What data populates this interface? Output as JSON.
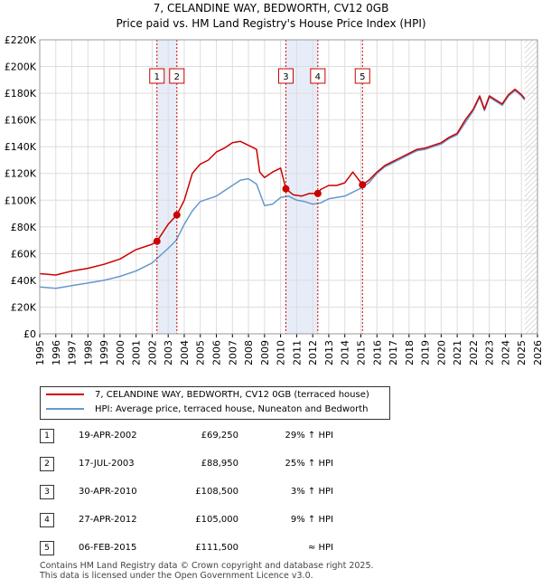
{
  "title": {
    "line1": "7, CELANDINE WAY, BEDWORTH, CV12 0GB",
    "line2": "Price paid vs. HM Land Registry's House Price Index (HPI)"
  },
  "legend": {
    "property": "7, CELANDINE WAY, BEDWORTH, CV12 0GB (terraced house)",
    "hpi": "HPI: Average price, terraced house, Nuneaton and Bedworth"
  },
  "sales": [
    {
      "num": "1",
      "date": "19-APR-2002",
      "price": "£69,250",
      "hpi": "29% ↑ HPI"
    },
    {
      "num": "2",
      "date": "17-JUL-2003",
      "price": "£88,950",
      "hpi": "25% ↑ HPI"
    },
    {
      "num": "3",
      "date": "30-APR-2010",
      "price": "£108,500",
      "hpi": "3% ↑ HPI"
    },
    {
      "num": "4",
      "date": "27-APR-2012",
      "price": "£105,000",
      "hpi": "9% ↑ HPI"
    },
    {
      "num": "5",
      "date": "06-FEB-2015",
      "price": "£111,500",
      "hpi": "≈ HPI"
    }
  ],
  "footer": {
    "line1": "Contains HM Land Registry data © Crown copyright and database right 2025.",
    "line2": "This data is licensed under the Open Government Licence v3.0."
  },
  "colors": {
    "property": "#cc0000",
    "hpi": "#6699cc",
    "shade": "#dde6f5",
    "grid": "#dddddd"
  },
  "chart_data": {
    "type": "line",
    "title": "7, CELANDINE WAY, BEDWORTH, CV12 0GB — Price paid vs. HM Land Registry's House Price Index (HPI)",
    "xlabel": "",
    "ylabel": "",
    "xlim": [
      1995,
      2026
    ],
    "ylim": [
      0,
      220000
    ],
    "y_ticks": [
      0,
      20000,
      40000,
      60000,
      80000,
      100000,
      120000,
      140000,
      160000,
      180000,
      200000,
      220000
    ],
    "y_tick_labels": [
      "£0",
      "£20K",
      "£40K",
      "£60K",
      "£80K",
      "£100K",
      "£120K",
      "£140K",
      "£160K",
      "£180K",
      "£200K",
      "£220K"
    ],
    "x_ticks": [
      1995,
      1996,
      1997,
      1998,
      1999,
      2000,
      2001,
      2002,
      2003,
      2004,
      2005,
      2006,
      2007,
      2008,
      2009,
      2010,
      2011,
      2012,
      2013,
      2014,
      2015,
      2016,
      2017,
      2018,
      2019,
      2020,
      2021,
      2022,
      2023,
      2024,
      2025,
      2026
    ],
    "x_tick_labels": [
      "1995",
      "1996",
      "1997",
      "1998",
      "1999",
      "2000",
      "2001",
      "2002",
      "2003",
      "2004",
      "2005",
      "2006",
      "2007",
      "2008",
      "2009",
      "2010",
      "2011",
      "2012",
      "2013",
      "2014",
      "2015",
      "2016",
      "2017",
      "2018",
      "2019",
      "2020",
      "2021",
      "2022",
      "2023",
      "2024",
      "2025",
      "2026"
    ],
    "series": [
      {
        "name": "7, CELANDINE WAY, BEDWORTH, CV12 0GB (terraced house)",
        "points": [
          [
            1995.0,
            45000
          ],
          [
            1996.0,
            44000
          ],
          [
            1997.0,
            47000
          ],
          [
            1998.0,
            49000
          ],
          [
            1999.0,
            52000
          ],
          [
            2000.0,
            56000
          ],
          [
            2001.0,
            63000
          ],
          [
            2002.0,
            67000
          ],
          [
            2002.3,
            69250
          ],
          [
            2003.0,
            82000
          ],
          [
            2003.54,
            88950
          ],
          [
            2004.0,
            100000
          ],
          [
            2004.5,
            120000
          ],
          [
            2005.0,
            127000
          ],
          [
            2005.5,
            130000
          ],
          [
            2006.0,
            136000
          ],
          [
            2006.5,
            139000
          ],
          [
            2007.0,
            143000
          ],
          [
            2007.5,
            144000
          ],
          [
            2008.0,
            141000
          ],
          [
            2008.5,
            138000
          ],
          [
            2008.7,
            121000
          ],
          [
            2009.0,
            117000
          ],
          [
            2009.5,
            121000
          ],
          [
            2010.0,
            124000
          ],
          [
            2010.33,
            108500
          ],
          [
            2010.8,
            104000
          ],
          [
            2011.3,
            103000
          ],
          [
            2011.8,
            105000
          ],
          [
            2012.32,
            105000
          ],
          [
            2012.5,
            108000
          ],
          [
            2013.0,
            111000
          ],
          [
            2013.5,
            111000
          ],
          [
            2014.0,
            113000
          ],
          [
            2014.5,
            121000
          ],
          [
            2015.1,
            111500
          ],
          [
            2015.5,
            115000
          ],
          [
            2016.0,
            121000
          ],
          [
            2016.5,
            126000
          ],
          [
            2017.0,
            129000
          ],
          [
            2017.5,
            132000
          ],
          [
            2018.0,
            135000
          ],
          [
            2018.5,
            138000
          ],
          [
            2019.0,
            139000
          ],
          [
            2019.5,
            141000
          ],
          [
            2020.0,
            143000
          ],
          [
            2020.5,
            147000
          ],
          [
            2021.0,
            150000
          ],
          [
            2021.5,
            160000
          ],
          [
            2022.0,
            168000
          ],
          [
            2022.4,
            178000
          ],
          [
            2022.7,
            168000
          ],
          [
            2023.0,
            178000
          ],
          [
            2023.4,
            175000
          ],
          [
            2023.8,
            172000
          ],
          [
            2024.2,
            179000
          ],
          [
            2024.6,
            183000
          ],
          [
            2025.0,
            179000
          ],
          [
            2025.2,
            176000
          ]
        ]
      },
      {
        "name": "HPI: Average price, terraced house, Nuneaton and Bedworth",
        "points": [
          [
            1995.0,
            35000
          ],
          [
            1996.0,
            34000
          ],
          [
            1997.0,
            36000
          ],
          [
            1998.0,
            38000
          ],
          [
            1999.0,
            40000
          ],
          [
            2000.0,
            43000
          ],
          [
            2001.0,
            47000
          ],
          [
            2002.0,
            53000
          ],
          [
            2003.0,
            64000
          ],
          [
            2003.5,
            70000
          ],
          [
            2004.0,
            82000
          ],
          [
            2004.5,
            92000
          ],
          [
            2005.0,
            99000
          ],
          [
            2006.0,
            103000
          ],
          [
            2006.5,
            107000
          ],
          [
            2007.0,
            111000
          ],
          [
            2007.5,
            115000
          ],
          [
            2008.0,
            116000
          ],
          [
            2008.5,
            112000
          ],
          [
            2009.0,
            96000
          ],
          [
            2009.5,
            97000
          ],
          [
            2010.0,
            102000
          ],
          [
            2010.5,
            103000
          ],
          [
            2011.0,
            100000
          ],
          [
            2011.5,
            99000
          ],
          [
            2012.0,
            97000
          ],
          [
            2012.5,
            98000
          ],
          [
            2013.0,
            101000
          ],
          [
            2013.5,
            102000
          ],
          [
            2014.0,
            103000
          ],
          [
            2014.5,
            106000
          ],
          [
            2015.0,
            109000
          ],
          [
            2015.5,
            113000
          ],
          [
            2016.0,
            120000
          ],
          [
            2016.5,
            125000
          ],
          [
            2017.0,
            128000
          ],
          [
            2017.5,
            131000
          ],
          [
            2018.0,
            134000
          ],
          [
            2018.5,
            137000
          ],
          [
            2019.0,
            138000
          ],
          [
            2019.5,
            140000
          ],
          [
            2020.0,
            142000
          ],
          [
            2020.5,
            146000
          ],
          [
            2021.0,
            149000
          ],
          [
            2021.5,
            158000
          ],
          [
            2022.0,
            167000
          ],
          [
            2022.4,
            177000
          ],
          [
            2022.7,
            167000
          ],
          [
            2023.0,
            177000
          ],
          [
            2023.4,
            174000
          ],
          [
            2023.8,
            171000
          ],
          [
            2024.2,
            178000
          ],
          [
            2024.6,
            182000
          ],
          [
            2025.0,
            178000
          ],
          [
            2025.2,
            175000
          ]
        ]
      }
    ],
    "sale_markers": [
      {
        "num": "1",
        "x": 2002.3,
        "y": 69250
      },
      {
        "num": "2",
        "x": 2003.54,
        "y": 88950
      },
      {
        "num": "3",
        "x": 2010.33,
        "y": 108500
      },
      {
        "num": "4",
        "x": 2012.32,
        "y": 105000
      },
      {
        "num": "5",
        "x": 2015.1,
        "y": 111500
      }
    ],
    "shaded_ranges": [
      [
        2002.3,
        2003.54
      ],
      [
        2010.33,
        2012.32
      ]
    ],
    "future_hatch_from": 2025.2
  }
}
